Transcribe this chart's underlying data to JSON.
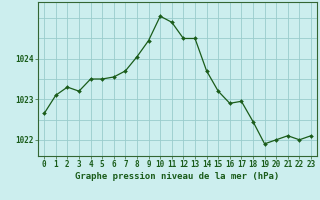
{
  "hours": [
    0,
    1,
    2,
    3,
    4,
    5,
    6,
    7,
    8,
    9,
    10,
    11,
    12,
    13,
    14,
    15,
    16,
    17,
    18,
    19,
    20,
    21,
    22,
    23
  ],
  "pressure": [
    1022.65,
    1023.1,
    1023.3,
    1023.2,
    1023.5,
    1023.5,
    1023.55,
    1023.7,
    1024.05,
    1024.45,
    1025.05,
    1024.9,
    1024.5,
    1024.5,
    1023.7,
    1023.2,
    1022.9,
    1022.95,
    1022.45,
    1021.9,
    1022.0,
    1022.1,
    1022.0,
    1022.1
  ],
  "line_color": "#1a5c1a",
  "marker_color": "#1a5c1a",
  "background_color": "#cceeee",
  "grid_color": "#99cccc",
  "text_color": "#1a5c1a",
  "title": "Graphe pression niveau de la mer (hPa)",
  "ylim_min": 1021.6,
  "ylim_max": 1025.4,
  "yticks": [
    1022,
    1023,
    1024
  ],
  "xtick_labels": [
    "0",
    "1",
    "2",
    "3",
    "4",
    "5",
    "6",
    "7",
    "8",
    "9",
    "10",
    "11",
    "12",
    "13",
    "14",
    "15",
    "16",
    "17",
    "18",
    "19",
    "20",
    "21",
    "22",
    "23"
  ],
  "title_fontsize": 6.5,
  "tick_fontsize": 5.5,
  "border_color": "#336633"
}
